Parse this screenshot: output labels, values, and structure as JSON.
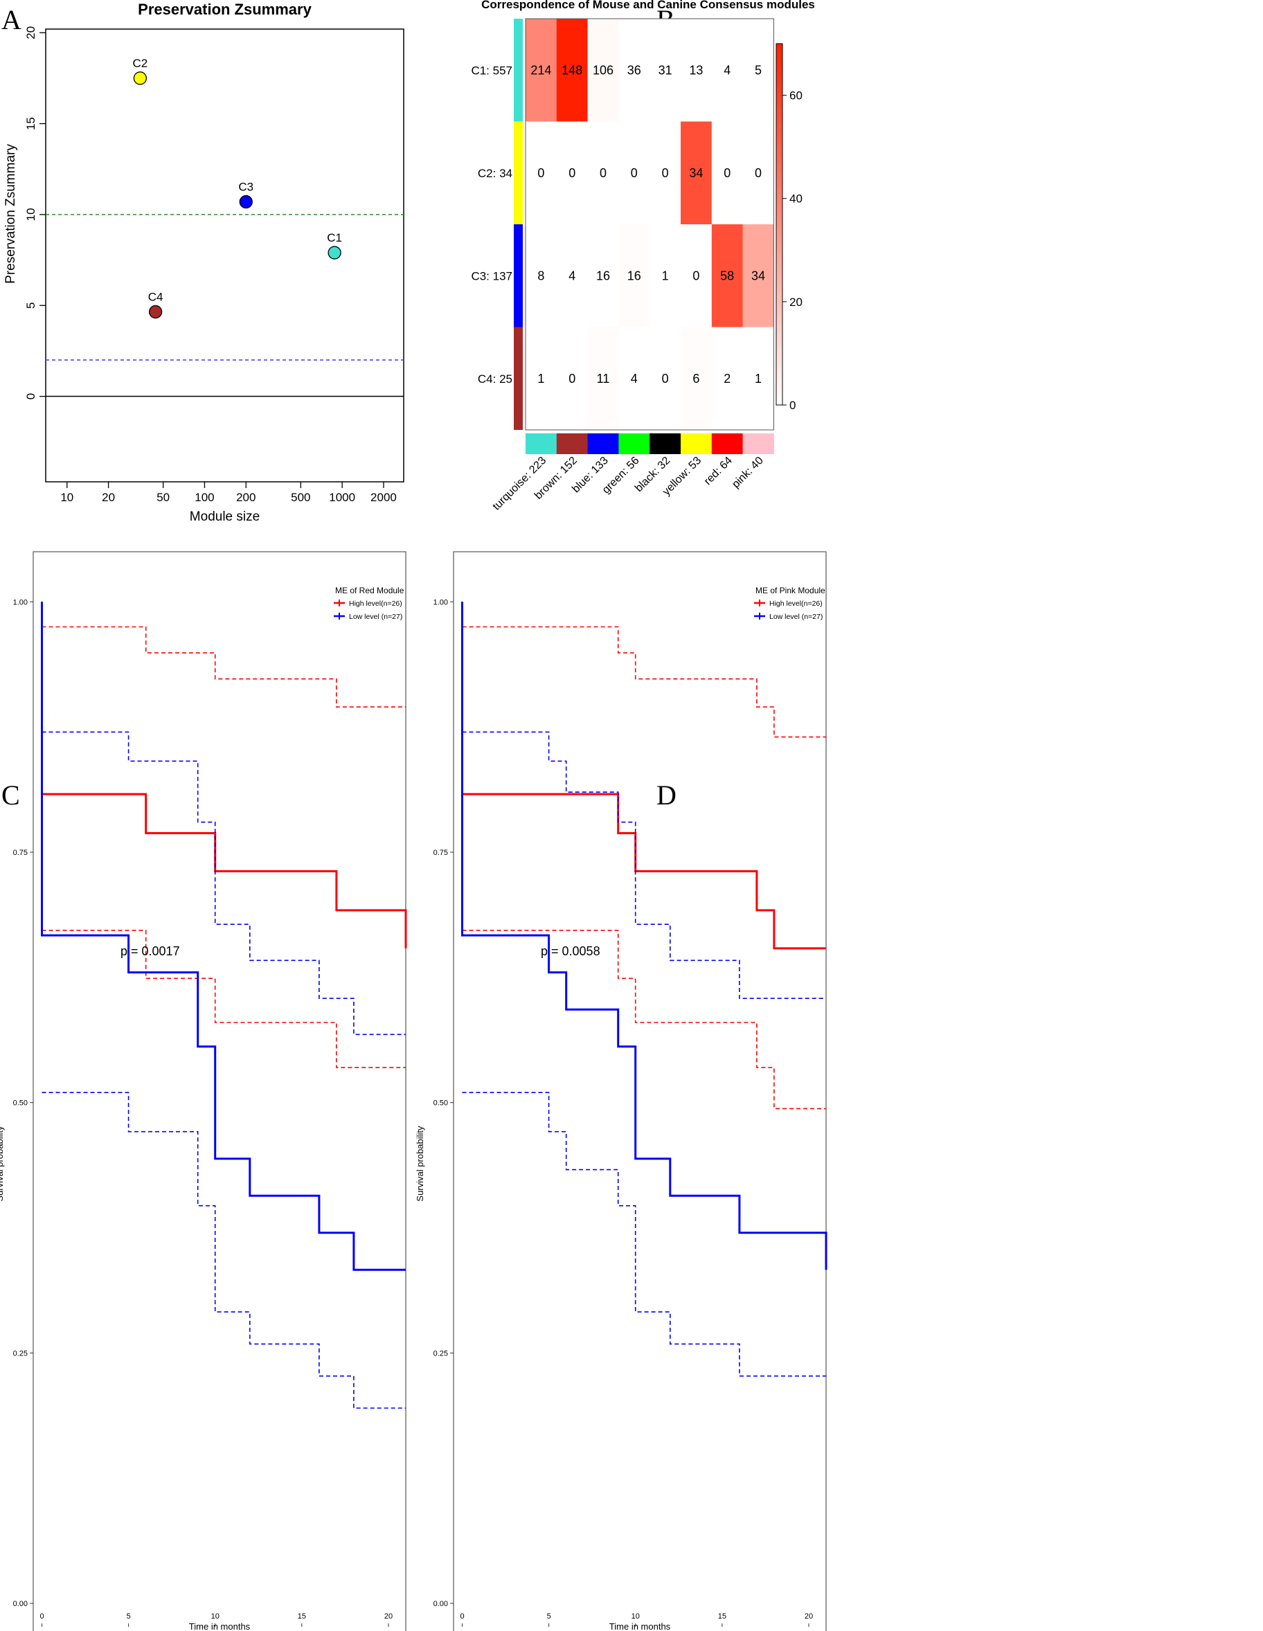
{
  "panels": {
    "a_letter": "A",
    "b_letter": "B",
    "c_letter": "C",
    "d_letter": "D"
  },
  "chart_data": [
    {
      "panel": "A",
      "type": "scatter",
      "title": "Preservation Zsummary",
      "xlabel": "Module size",
      "ylabel": "Preservation Zsummary",
      "xscale": "log",
      "xlim": [
        7,
        2800
      ],
      "ylim": [
        -4.7,
        20.2
      ],
      "xticks": [
        10,
        20,
        50,
        100,
        200,
        500,
        1000,
        2000
      ],
      "xtick_labels": [
        "10",
        "20",
        "50",
        "100",
        "200",
        "500",
        "1000",
        "2000"
      ],
      "yticks": [
        0,
        5,
        10,
        15,
        20
      ],
      "ytick_labels": [
        "0",
        "5",
        "10",
        "15",
        "20"
      ],
      "points": [
        {
          "label": "C2",
          "x": 34,
          "y": 17.5,
          "color": "#ffff00"
        },
        {
          "label": "C3",
          "x": 200,
          "y": 10.7,
          "color": "#0000ff"
        },
        {
          "label": "C1",
          "x": 880,
          "y": 7.9,
          "color": "#40e0d0"
        },
        {
          "label": "C4",
          "x": 44,
          "y": 4.65,
          "color": "#a52a2a"
        }
      ],
      "reference_lines": [
        {
          "y": 10,
          "color": "#2e8b2e",
          "style": "dashed"
        },
        {
          "y": 2,
          "color": "#3a3aff",
          "style": "dashed"
        },
        {
          "y": 0,
          "color": "#000000",
          "style": "solid"
        }
      ]
    },
    {
      "panel": "B",
      "type": "heatmap",
      "title": "Correspondence of Mouse and Canine Consensus modules",
      "row_labels": [
        "C1: 557",
        "C2: 34",
        "C3: 137",
        "C4: 25"
      ],
      "row_colors": [
        "#40e0d0",
        "#ffff00",
        "#0000ff",
        "#a52a2a"
      ],
      "col_labels": [
        "turquoise: 223",
        "brown: 152",
        "blue: 133",
        "green: 56",
        "black: 32",
        "yellow: 53",
        "red: 64",
        "pink: 40"
      ],
      "col_colors": [
        "#40e0d0",
        "#a52a2a",
        "#0000ff",
        "#00ff00",
        "#000000",
        "#ffff00",
        "#ff0000",
        "#ffc0cb"
      ],
      "counts": [
        [
          "214",
          "148",
          "106",
          "36",
          "31",
          "13",
          "4",
          "5"
        ],
        [
          "0",
          "0",
          "0",
          "0",
          "0",
          "34",
          "0",
          "0"
        ],
        [
          "8",
          "4",
          "16",
          "16",
          "1",
          "0",
          "58",
          "34"
        ],
        [
          "1",
          "0",
          "11",
          "4",
          "0",
          "6",
          "2",
          "1"
        ]
      ],
      "significance": [
        [
          38,
          70,
          2,
          0,
          0,
          0,
          0,
          0
        ],
        [
          0,
          0,
          0,
          0,
          0,
          55,
          0,
          0
        ],
        [
          0,
          0,
          0,
          1,
          0,
          0,
          55,
          27
        ],
        [
          0,
          0,
          1,
          0,
          0,
          1,
          0,
          0
        ]
      ],
      "colorbar": {
        "range": [
          0,
          70
        ],
        "ticks": [
          0,
          20,
          40,
          60
        ],
        "tick_labels": [
          "0",
          "20",
          "40",
          "60"
        ],
        "low_color": "#ffffff",
        "high_color": "#ff2000"
      }
    },
    {
      "panel": "C",
      "type": "line",
      "subtype": "kaplan-meier",
      "xlabel": "Time in months",
      "ylabel": "Survival probability",
      "xlim": [
        -0.5,
        21
      ],
      "ylim": [
        -0.02,
        1.05
      ],
      "xticks": [
        0,
        5,
        10,
        15,
        20
      ],
      "xtick_labels": [
        "0",
        "5",
        "10",
        "15",
        "20"
      ],
      "yticks": [
        0,
        0.25,
        0.5,
        0.75,
        1.0
      ],
      "ytick_labels": [
        "0.00",
        "0.25",
        "0.50",
        "0.75",
        "1.00"
      ],
      "legend_title": "ME   of Red Module",
      "legend": [
        "High level(n=26)",
        "Low level (n=27)"
      ],
      "legend_position": "top-right",
      "pvalue": "p = 0.0017",
      "series": [
        {
          "name": "High level(n=26)",
          "color": "#ff0000",
          "role": "estimate",
          "start": [
            0,
            1.0
          ],
          "steps": [
            [
              0,
              0.808
            ],
            [
              6,
              0.769
            ],
            [
              10,
              0.731
            ],
            [
              17,
              0.692
            ],
            [
              21,
              0.654
            ]
          ]
        },
        {
          "name": "High level(n=26)",
          "color": "#ff0000",
          "role": "upper",
          "start": [
            0,
            0.975
          ],
          "steps": [
            [
              6,
              0.949
            ],
            [
              10,
              0.923
            ],
            [
              17,
              0.895
            ]
          ]
        },
        {
          "name": "High level(n=26)",
          "color": "#ff0000",
          "role": "lower",
          "start": [
            0,
            0.672
          ],
          "steps": [
            [
              6,
              0.624
            ],
            [
              10,
              0.58
            ],
            [
              17,
              0.535
            ]
          ]
        },
        {
          "name": "Low level (n=27)",
          "color": "#0000ff",
          "role": "estimate",
          "start": [
            0,
            1.0
          ],
          "steps": [
            [
              0,
              0.667
            ],
            [
              5,
              0.63
            ],
            [
              9,
              0.556
            ],
            [
              10,
              0.444
            ],
            [
              12,
              0.407
            ],
            [
              16,
              0.37
            ],
            [
              18,
              0.333
            ]
          ]
        },
        {
          "name": "Low level (n=27)",
          "color": "#0000ff",
          "role": "upper",
          "start": [
            0,
            0.87
          ],
          "steps": [
            [
              5,
              0.841
            ],
            [
              9,
              0.78
            ],
            [
              10,
              0.678
            ],
            [
              12,
              0.642
            ],
            [
              16,
              0.604
            ],
            [
              18,
              0.568
            ]
          ]
        },
        {
          "name": "Low level (n=27)",
          "color": "#0000ff",
          "role": "lower",
          "start": [
            0,
            0.51
          ],
          "steps": [
            [
              5,
              0.471
            ],
            [
              9,
              0.397
            ],
            [
              10,
              0.291
            ],
            [
              12,
              0.259
            ],
            [
              16,
              0.227
            ],
            [
              18,
              0.195
            ]
          ]
        }
      ]
    },
    {
      "panel": "D",
      "type": "line",
      "subtype": "kaplan-meier",
      "xlabel": "Time in months",
      "ylabel": "Survival probability",
      "xlim": [
        -0.5,
        21
      ],
      "ylim": [
        -0.02,
        1.05
      ],
      "xticks": [
        0,
        5,
        10,
        15,
        20
      ],
      "xtick_labels": [
        "0",
        "5",
        "10",
        "15",
        "20"
      ],
      "yticks": [
        0,
        0.25,
        0.5,
        0.75,
        1.0
      ],
      "ytick_labels": [
        "0.00",
        "0.25",
        "0.50",
        "0.75",
        "1.00"
      ],
      "legend_title": "ME   of Pink Module",
      "legend": [
        "High level(n=26)",
        "Low level (n=27)"
      ],
      "legend_position": "top-right",
      "pvalue": "p = 0.0058",
      "series": [
        {
          "name": "High level(n=26)",
          "color": "#ff0000",
          "role": "estimate",
          "start": [
            0,
            1.0
          ],
          "steps": [
            [
              0,
              0.808
            ],
            [
              9,
              0.769
            ],
            [
              10,
              0.731
            ],
            [
              17,
              0.692
            ],
            [
              18,
              0.654
            ]
          ]
        },
        {
          "name": "High level(n=26)",
          "color": "#ff0000",
          "role": "upper",
          "start": [
            0,
            0.975
          ],
          "steps": [
            [
              9,
              0.949
            ],
            [
              10,
              0.923
            ],
            [
              17,
              0.895
            ],
            [
              18,
              0.865
            ]
          ]
        },
        {
          "name": "High level(n=26)",
          "color": "#ff0000",
          "role": "lower",
          "start": [
            0,
            0.672
          ],
          "steps": [
            [
              9,
              0.624
            ],
            [
              10,
              0.58
            ],
            [
              17,
              0.535
            ],
            [
              18,
              0.494
            ]
          ]
        },
        {
          "name": "Low level (n=27)",
          "color": "#0000ff",
          "role": "estimate",
          "start": [
            0,
            1.0
          ],
          "steps": [
            [
              0,
              0.667
            ],
            [
              5,
              0.63
            ],
            [
              6,
              0.593
            ],
            [
              9,
              0.556
            ],
            [
              10,
              0.444
            ],
            [
              12,
              0.407
            ],
            [
              16,
              0.37
            ],
            [
              21,
              0.333
            ]
          ]
        },
        {
          "name": "Low level (n=27)",
          "color": "#0000ff",
          "role": "upper",
          "start": [
            0,
            0.87
          ],
          "steps": [
            [
              5,
              0.841
            ],
            [
              6,
              0.81
            ],
            [
              9,
              0.78
            ],
            [
              10,
              0.678
            ],
            [
              12,
              0.642
            ],
            [
              16,
              0.604
            ]
          ]
        },
        {
          "name": "Low level (n=27)",
          "color": "#0000ff",
          "role": "lower",
          "start": [
            0,
            0.51
          ],
          "steps": [
            [
              5,
              0.471
            ],
            [
              6,
              0.433
            ],
            [
              9,
              0.397
            ],
            [
              10,
              0.291
            ],
            [
              12,
              0.259
            ],
            [
              16,
              0.227
            ]
          ]
        }
      ]
    }
  ]
}
